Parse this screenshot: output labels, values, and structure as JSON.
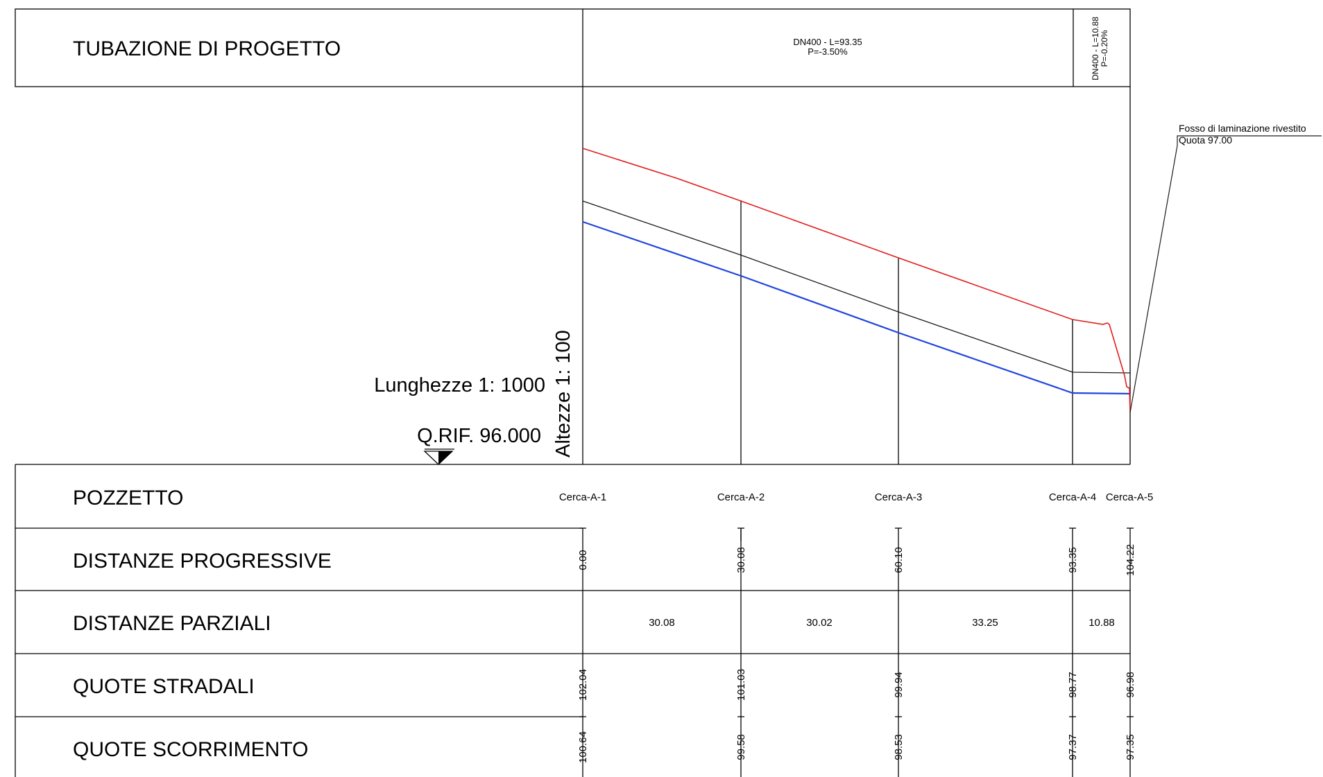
{
  "header": {
    "title": "TUBAZIONE DI PROGETTO",
    "pipe1_line1": "DN400 - L=93.35",
    "pipe1_line2": "P=-3.50%",
    "pipe2_line1": "DN400 - L=10.88",
    "pipe2_line2": "P=-0.20%"
  },
  "scales": {
    "lengths": "Lunghezze 1: 1000",
    "heights": "Altezze 1: 100",
    "reference": "Q.RIF. 96.000"
  },
  "callout": {
    "line1": "Fosso di laminazione rivestito",
    "line2": "Quota 97.00"
  },
  "colors": {
    "ground_line": "#e31a1a",
    "invert_line": "#1f45e0",
    "crown_line": "#1a1a1a"
  },
  "rows": {
    "pozzetto": "POZZETTO",
    "progressive": "DISTANZE PROGRESSIVE",
    "parziali": "DISTANZE PARZIALI",
    "stradali": "QUOTE STRADALI",
    "scorrimento": "QUOTE SCORRIMENTO"
  },
  "chart_data": {
    "type": "line",
    "manholes": [
      "Cerca-A-1",
      "Cerca-A-2",
      "Cerca-A-3",
      "Cerca-A-4",
      "Cerca-A-5"
    ],
    "progressive_distances": [
      0.0,
      30.08,
      60.1,
      93.35,
      104.22
    ],
    "progressive_labels": [
      "0.00",
      "30.08",
      "60.10",
      "93.35",
      "104.22"
    ],
    "partial_distances": [
      "30.08",
      "30.02",
      "33.25",
      "10.88"
    ],
    "road_elevations": [
      "102.04",
      "101.03",
      "99.94",
      "98.77",
      "96.98"
    ],
    "invert_elevations": [
      "100.64",
      "99.58",
      "98.53",
      "97.37",
      "97.35"
    ],
    "reference_level": 96.0
  }
}
